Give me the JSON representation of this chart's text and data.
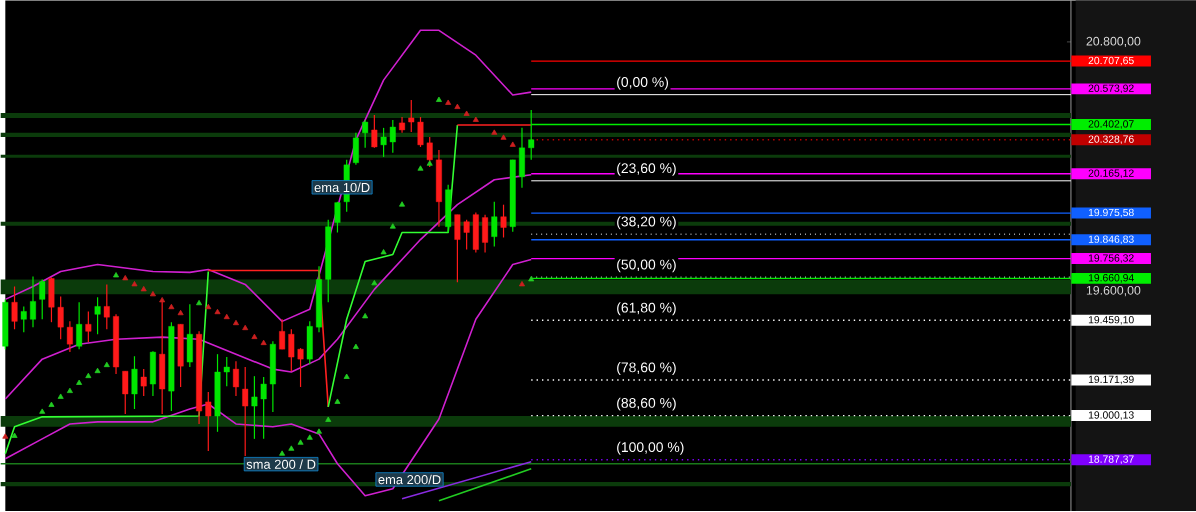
{
  "chart_data": {
    "type": "candlestick",
    "categories": [
      null,
      null,
      null,
      null,
      null,
      null,
      null,
      null,
      null,
      null,
      null,
      null,
      null,
      null,
      null,
      null,
      null,
      null,
      null,
      null,
      null,
      null,
      null,
      null,
      null,
      null,
      null,
      null,
      null,
      null,
      null,
      null,
      null,
      null,
      null,
      null,
      null,
      null,
      null,
      null,
      null,
      null,
      null,
      null,
      null,
      null,
      null,
      null,
      null,
      null,
      null,
      null,
      null,
      null,
      null,
      null,
      null,
      null,
      null,
      null,
      null,
      null,
      null,
      null,
      null,
      null,
      null,
      null,
      null,
      null,
      null,
      null,
      null,
      null,
      null,
      null,
      null,
      null,
      null,
      null,
      null,
      null,
      null,
      null,
      null,
      null,
      null,
      null,
      null,
      null,
      null,
      null,
      null,
      null,
      null,
      null,
      null,
      null,
      null,
      null,
      null,
      null,
      null,
      null,
      null,
      null,
      null,
      null,
      null,
      null,
      null,
      null,
      null,
      null,
      null,
      null
    ],
    "ohlc": [
      [
        19334,
        19560,
        19320,
        19546
      ],
      [
        19546,
        19622,
        19416,
        19454
      ],
      [
        19464,
        19526,
        19402,
        19502
      ],
      [
        19464,
        19670,
        19426,
        19550
      ],
      [
        19560,
        19656,
        19464,
        19646
      ],
      [
        19661,
        19666,
        19450,
        19522
      ],
      [
        19522,
        19574,
        19368,
        19426
      ],
      [
        19426,
        19454,
        19306,
        19344
      ],
      [
        19334,
        19546,
        19320,
        19440
      ],
      [
        19440,
        19502,
        19354,
        19406
      ],
      [
        19488,
        19570,
        19392,
        19526
      ],
      [
        19526,
        19632,
        19416,
        19474
      ],
      [
        19478,
        19488,
        19200,
        19234
      ],
      [
        19214,
        19214,
        19008,
        19104
      ],
      [
        19104,
        19286,
        19032,
        19224
      ],
      [
        19186,
        19224,
        19094,
        19142
      ],
      [
        19152,
        19310,
        19094,
        19306
      ],
      [
        19296,
        19560,
        19008,
        19128
      ],
      [
        19118,
        19450,
        19022,
        19430
      ],
      [
        19440,
        19440,
        19138,
        19238
      ],
      [
        19258,
        19536,
        19234,
        19392
      ],
      [
        19392,
        19406,
        18960,
        19022
      ],
      [
        19066,
        19114,
        18830,
        18998
      ],
      [
        18998,
        19296,
        18922,
        19210
      ],
      [
        19210,
        19282,
        19142,
        19234
      ],
      [
        19224,
        19262,
        19094,
        19138
      ],
      [
        19128,
        19234,
        18806,
        19046
      ],
      [
        19046,
        19190,
        18888,
        19090
      ],
      [
        19080,
        19186,
        18888,
        19152
      ],
      [
        19152,
        19358,
        19018,
        19344
      ],
      [
        19406,
        19464,
        19320,
        19320
      ],
      [
        19392,
        19416,
        19214,
        19282
      ],
      [
        19320,
        19325,
        19138,
        19272
      ],
      [
        19272,
        19454,
        19248,
        19430
      ],
      [
        19426,
        19720,
        19402,
        19656
      ],
      [
        19656,
        19944,
        19546,
        19910
      ],
      [
        19930,
        20030,
        19882,
        20026
      ],
      [
        20030,
        20232,
        19982,
        20208
      ],
      [
        20218,
        20362,
        20208,
        20338
      ],
      [
        20362,
        20424,
        20290,
        20414
      ],
      [
        20376,
        20448,
        20290,
        20294
      ],
      [
        20304,
        20386,
        20246,
        20342
      ],
      [
        20318,
        20424,
        20266,
        20390
      ],
      [
        20410,
        20438,
        20362,
        20376
      ],
      [
        20434,
        20520,
        20366,
        20414
      ],
      [
        20414,
        20438,
        20294,
        20304
      ],
      [
        20314,
        20342,
        20198,
        20232
      ],
      [
        20232,
        20280,
        19910,
        20030
      ],
      [
        19910,
        20112,
        19882,
        20088
      ],
      [
        19968,
        19968,
        19642,
        19848
      ],
      [
        19934,
        19944,
        19800,
        19882
      ],
      [
        19968,
        19978,
        19786,
        19800
      ],
      [
        19954,
        19968,
        19786,
        19834
      ],
      [
        19862,
        20030,
        19814,
        19958
      ],
      [
        19958,
        20016,
        19858,
        19906
      ],
      [
        19910,
        20232,
        19886,
        20232
      ],
      [
        20150,
        20386,
        20098,
        20290
      ],
      [
        20290,
        20472,
        20232,
        20329
      ],
      null,
      null,
      null,
      null,
      null,
      null,
      null,
      null,
      null,
      null,
      null,
      null,
      null,
      null,
      null,
      null,
      null,
      null,
      null,
      null,
      null,
      null,
      null,
      null,
      null,
      null,
      null,
      null,
      null,
      null,
      null,
      null,
      null,
      null,
      null,
      null,
      null,
      null,
      null,
      null,
      null,
      null,
      null,
      null,
      null,
      null,
      null,
      null,
      null,
      null,
      null,
      null,
      null,
      null,
      null,
      null,
      null,
      null
    ],
    "series": [
      {
        "type": "line",
        "color": "#d020d0",
        "values": [
          19560,
          null,
          null,
          19622,
          null,
          null,
          19694,
          null,
          null,
          null,
          19728,
          null,
          null,
          null,
          null,
          null,
          19694,
          null,
          null,
          null,
          19690,
          null,
          19704,
          null,
          null,
          null,
          19632,
          null,
          null,
          null,
          19454,
          null,
          null,
          19512,
          null,
          null,
          null,
          null,
          20328,
          null,
          null,
          20616,
          null,
          null,
          null,
          20856,
          null,
          20856,
          null,
          null,
          null,
          20736,
          null,
          null,
          null,
          20544,
          null,
          20558,
          null,
          null,
          null,
          null,
          null,
          null,
          null,
          null,
          null,
          null,
          null,
          null,
          null,
          null,
          null,
          null,
          null,
          null,
          null,
          null,
          null,
          null,
          null,
          null,
          null,
          null,
          null,
          null,
          null,
          null,
          null,
          null,
          null,
          null,
          null,
          null,
          null,
          null,
          null,
          null,
          null,
          null,
          null,
          null,
          null,
          null,
          null,
          null,
          null,
          null,
          null,
          null,
          null,
          null,
          null,
          null,
          null,
          null
        ]
      },
      {
        "type": "line",
        "color": "#d020d0",
        "values": [
          19080,
          null,
          null,
          null,
          19272,
          null,
          null,
          null,
          19344,
          null,
          null,
          null,
          19368,
          null,
          null,
          null,
          null,
          19378,
          null,
          null,
          null,
          19368,
          null,
          null,
          null,
          19296,
          null,
          null,
          null,
          19224,
          null,
          19210,
          null,
          null,
          19272,
          null,
          19368,
          null,
          null,
          null,
          19608,
          null,
          null,
          null,
          null,
          19848,
          null,
          null,
          null,
          20016,
          null,
          null,
          null,
          20136,
          null,
          null,
          null,
          20160,
          null,
          null,
          null,
          null,
          null,
          null,
          null,
          null,
          null,
          null,
          null,
          null,
          null,
          null,
          null,
          null,
          null,
          null,
          null,
          null,
          null,
          null,
          null,
          null,
          null,
          null,
          null,
          null,
          null,
          null,
          null,
          null,
          null,
          null,
          null,
          null,
          null,
          null,
          null,
          null,
          null,
          null,
          null,
          null,
          null,
          null,
          null,
          null,
          null,
          null,
          null,
          null,
          null,
          null,
          null,
          null,
          null,
          null
        ]
      },
      {
        "type": "line",
        "color": "#d020d0",
        "values": [
          18792,
          null,
          null,
          null,
          18888,
          null,
          null,
          18960,
          null,
          null,
          18970,
          null,
          null,
          null,
          null,
          null,
          18970,
          null,
          null,
          null,
          19032,
          null,
          19056,
          null,
          null,
          18960,
          null,
          null,
          null,
          18946,
          null,
          18960,
          null,
          null,
          18912,
          null,
          18768,
          null,
          null,
          18614,
          null,
          null,
          18648,
          null,
          null,
          null,
          null,
          18984,
          null,
          null,
          null,
          19464,
          null,
          null,
          null,
          19728,
          null,
          19752,
          null,
          null,
          null,
          null,
          null,
          null,
          null,
          null,
          null,
          null,
          null,
          null,
          null,
          null,
          null,
          null,
          null,
          null,
          null,
          null,
          null,
          null,
          null,
          null,
          null,
          null,
          null,
          null,
          null,
          null,
          null,
          null,
          null,
          null,
          null,
          null,
          null,
          null,
          null,
          null,
          null,
          null,
          null,
          null,
          null,
          null,
          null,
          null,
          null,
          null,
          null,
          null,
          null,
          null,
          null,
          null,
          null,
          null
        ]
      },
      {
        "type": "line",
        "color": "#33ff33",
        "values": [
          18816,
          18946,
          null,
          null,
          18994,
          null,
          null,
          null,
          null,
          null,
          null,
          null,
          null,
          null,
          null,
          null,
          null,
          null,
          null,
          null,
          null,
          18998,
          19694,
          null,
          null,
          null,
          null,
          null,
          null,
          null,
          null,
          null,
          null,
          null,
          null,
          null,
          null,
          null,
          null,
          null,
          null,
          null,
          null,
          null,
          null,
          null,
          null,
          null,
          null,
          null,
          null,
          null,
          null,
          null,
          null,
          null,
          null,
          null,
          null,
          null,
          null,
          null,
          null,
          null,
          null,
          null,
          null,
          null,
          null,
          null,
          null,
          null,
          null,
          null,
          null,
          null,
          null,
          null,
          null,
          null,
          null,
          null,
          null,
          null,
          null,
          null,
          null,
          null,
          null,
          null,
          null,
          null,
          null,
          null,
          null,
          null,
          null,
          null,
          null,
          null,
          null,
          null,
          null,
          null,
          null,
          null,
          null,
          null,
          null,
          null,
          null,
          null,
          null,
          null,
          null,
          null
        ]
      },
      {
        "type": "line",
        "color": "#ff2020",
        "values": [
          null,
          null,
          null,
          null,
          null,
          null,
          null,
          null,
          null,
          null,
          null,
          null,
          null,
          null,
          null,
          null,
          null,
          null,
          null,
          null,
          null,
          null,
          19699,
          null,
          null,
          null,
          null,
          null,
          null,
          null,
          null,
          null,
          null,
          null,
          19699,
          19042,
          null,
          null,
          null,
          null,
          null,
          null,
          null,
          null,
          null,
          null,
          null,
          null,
          null,
          null,
          null,
          null,
          null,
          null,
          null,
          null,
          null,
          null,
          null,
          null,
          null,
          null,
          null,
          null,
          null,
          null,
          null,
          null,
          null,
          null,
          null,
          null,
          null,
          null,
          null,
          null,
          null,
          null,
          null,
          null,
          null,
          null,
          null,
          null,
          null,
          null,
          null,
          null,
          null,
          null,
          null,
          null,
          null,
          null,
          null,
          null,
          null,
          null,
          null,
          null,
          null,
          null,
          null,
          null,
          null,
          null,
          null,
          null,
          null,
          null,
          null,
          null,
          null,
          null,
          null,
          null
        ]
      },
      {
        "type": "line",
        "color": "#33ff33",
        "values": [
          null,
          null,
          null,
          null,
          null,
          null,
          null,
          null,
          null,
          null,
          null,
          null,
          null,
          null,
          null,
          null,
          null,
          null,
          null,
          null,
          null,
          null,
          null,
          null,
          null,
          null,
          null,
          null,
          null,
          null,
          null,
          null,
          null,
          null,
          null,
          19042,
          null,
          19464,
          null,
          19742,
          null,
          null,
          19776,
          19882,
          null,
          null,
          null,
          null,
          19882,
          20400,
          null,
          null,
          null,
          null,
          null,
          null,
          null,
          null,
          null,
          null,
          null,
          null,
          null,
          null,
          null,
          null,
          null,
          null,
          null,
          null,
          null,
          null,
          null,
          null,
          null,
          null,
          null,
          null,
          null,
          null,
          null,
          null,
          null,
          null,
          null,
          null,
          null,
          null,
          null,
          null,
          null,
          null,
          null,
          null,
          null,
          null,
          null,
          null,
          null,
          null,
          null,
          null,
          null,
          null,
          null,
          null,
          null,
          null,
          null,
          null,
          null,
          null,
          null,
          null,
          null,
          null
        ]
      },
      {
        "type": "line",
        "color": "#ff2020",
        "values": [
          null,
          null,
          null,
          null,
          null,
          null,
          null,
          null,
          null,
          null,
          null,
          null,
          null,
          null,
          null,
          null,
          null,
          null,
          null,
          null,
          null,
          null,
          null,
          null,
          null,
          null,
          null,
          null,
          null,
          null,
          null,
          null,
          null,
          null,
          null,
          null,
          null,
          null,
          null,
          null,
          null,
          null,
          null,
          null,
          null,
          null,
          null,
          null,
          null,
          20400,
          null,
          null,
          null,
          null,
          null,
          null,
          null,
          20400,
          null,
          null,
          null,
          null,
          null,
          null,
          null,
          null,
          null,
          null,
          null,
          null,
          null,
          null,
          null,
          null,
          null,
          null,
          null,
          null,
          null,
          null,
          null,
          null,
          null,
          null,
          null,
          null,
          null,
          null,
          null,
          null,
          null,
          null,
          null,
          null,
          null,
          null,
          null,
          null,
          null,
          null,
          null,
          null,
          null,
          null,
          null,
          null,
          null,
          null,
          null,
          null,
          null,
          null,
          null,
          null,
          null,
          null
        ]
      },
      {
        "type": "line",
        "color": "#8a2be2",
        "values": [
          null,
          null,
          null,
          null,
          null,
          null,
          null,
          null,
          null,
          null,
          null,
          null,
          null,
          null,
          null,
          null,
          null,
          null,
          null,
          null,
          null,
          null,
          null,
          null,
          null,
          null,
          null,
          null,
          null,
          null,
          null,
          null,
          null,
          null,
          null,
          null,
          null,
          null,
          null,
          null,
          null,
          null,
          null,
          18600,
          null,
          null,
          null,
          null,
          null,
          null,
          null,
          null,
          null,
          null,
          null,
          null,
          null,
          18778,
          null,
          null,
          null,
          null,
          null,
          null,
          null,
          null,
          null,
          null,
          null,
          null,
          null,
          null,
          null,
          null,
          null,
          null,
          null,
          null,
          null,
          null,
          null,
          null,
          null,
          null,
          null,
          null,
          null,
          null,
          null,
          null,
          null,
          null,
          null,
          null,
          null,
          null,
          null,
          null,
          null,
          null,
          null,
          null,
          null,
          null,
          null,
          null,
          null,
          null,
          null,
          null,
          null,
          null,
          null,
          null,
          null,
          null
        ]
      },
      {
        "type": "line",
        "color": "#22cc22",
        "values": [
          null,
          null,
          null,
          null,
          null,
          null,
          null,
          null,
          null,
          null,
          null,
          null,
          null,
          null,
          null,
          null,
          null,
          null,
          null,
          null,
          null,
          null,
          null,
          null,
          null,
          null,
          null,
          null,
          null,
          null,
          null,
          null,
          null,
          null,
          null,
          null,
          null,
          null,
          null,
          null,
          null,
          null,
          null,
          null,
          null,
          null,
          null,
          18590,
          null,
          null,
          null,
          null,
          null,
          null,
          null,
          null,
          null,
          18744,
          null,
          null,
          null,
          null,
          null,
          null,
          null,
          null,
          null,
          null,
          null,
          null,
          null,
          null,
          null,
          null,
          null,
          null,
          null,
          null,
          null,
          null,
          null,
          null,
          null,
          null,
          null,
          null,
          null,
          null,
          null,
          null,
          null,
          null,
          null,
          null,
          null,
          null,
          null,
          null,
          null,
          null,
          null,
          null,
          null,
          null,
          null,
          null,
          null,
          null,
          null,
          null,
          null,
          null,
          null,
          null,
          null,
          null
        ]
      },
      {
        "type": "scatter",
        "color": "#22cc22",
        "marker": "triangle",
        "values": [
          null,
          18902,
          null,
          null,
          19018,
          19051,
          19090,
          19118,
          19157,
          19190,
          19214,
          19243,
          19675,
          null,
          null,
          null,
          null,
          null,
          null,
          null,
          null,
          19541,
          null,
          null,
          null,
          null,
          null,
          null,
          null,
          null,
          18816,
          18840,
          18869,
          18893,
          18922,
          18979,
          19066,
          19186,
          19330,
          19478,
          19637,
          19786,
          19910,
          20016,
          null,
          20189,
          20213,
          20520,
          null,
          null,
          null,
          null,
          null,
          null,
          null,
          null,
          null,
          19656,
          null,
          null,
          null,
          null,
          null,
          null,
          null,
          null,
          null,
          null,
          null,
          null,
          null,
          null,
          null,
          null,
          null,
          null,
          null,
          null,
          null,
          null,
          null,
          null,
          null,
          null,
          null,
          null,
          null,
          null,
          null,
          null,
          null,
          null,
          null,
          null,
          null,
          null,
          null,
          null,
          null,
          null,
          null,
          null,
          null,
          null,
          null,
          null,
          null,
          null,
          null,
          null,
          null,
          null,
          null,
          null,
          null,
          null
        ]
      },
      {
        "type": "scatter",
        "color": "#cc2020",
        "marker": "triangle",
        "values": [
          18898,
          null,
          null,
          null,
          null,
          null,
          null,
          null,
          null,
          null,
          null,
          null,
          null,
          19661,
          19632,
          19608,
          19584,
          19555,
          19522,
          19493,
          null,
          null,
          19522,
          19498,
          19474,
          19445,
          19421,
          19378,
          19349,
          null,
          null,
          null,
          null,
          null,
          null,
          null,
          null,
          null,
          null,
          null,
          null,
          null,
          null,
          null,
          null,
          null,
          null,
          null,
          20506,
          20486,
          20453,
          20424,
          null,
          20362,
          20338,
          20304,
          19632,
          null,
          null,
          null,
          null,
          null,
          null,
          null,
          null,
          null,
          null,
          null,
          null,
          null,
          null,
          null,
          null,
          null,
          null,
          null,
          null,
          null,
          null,
          null,
          null,
          null,
          null,
          null,
          null,
          null,
          null,
          null,
          null,
          null,
          null,
          null,
          null,
          null,
          null,
          null,
          null,
          null,
          null,
          null,
          null,
          null,
          null,
          null,
          null,
          null,
          null,
          null,
          null,
          null,
          null,
          null,
          null,
          null,
          null,
          null
        ]
      }
    ],
    "bands": [
      {
        "axis": "y",
        "from": 19584,
        "to": 19656,
        "color": "#0b3b0b"
      },
      {
        "axis": "y",
        "from": 18946,
        "to": 18998,
        "color": "#0b3b0b"
      },
      {
        "axis": "y",
        "from": 18660,
        "to": 18680,
        "color": "#0b3b0b"
      },
      {
        "axis": "y",
        "from": 20434,
        "to": 20458,
        "color": "#0b3b0b"
      },
      {
        "axis": "y",
        "from": 20342,
        "to": 20362,
        "color": "#0b3b0b"
      },
      {
        "axis": "y",
        "from": 20242,
        "to": 20256,
        "color": "#0b3b0b"
      },
      {
        "axis": "y",
        "from": 19915,
        "to": 19934,
        "color": "#0b3b0b"
      }
    ],
    "ref_lines": [
      {
        "axis": "y",
        "value": 20546,
        "line_style": "solid"
      },
      {
        "axis": "y",
        "value": 20131,
        "line_style": "solid"
      },
      {
        "axis": "y",
        "value": 19874,
        "line_style": "dotted"
      },
      {
        "axis": "y",
        "value": 19667,
        "line_style": "dotted"
      },
      {
        "axis": "y",
        "value": 20707.65,
        "label": "20.707,65",
        "color": "#ff0000",
        "line_style": "solid"
      },
      {
        "axis": "y",
        "value": 20573.92,
        "label": "20.573,92",
        "color": "#ff00ff",
        "line_style": "solid"
      },
      {
        "axis": "y",
        "value": 20402.07,
        "label": "20.402,07",
        "color": "#00ee00",
        "line_style": "solid"
      },
      {
        "axis": "y",
        "value": 20328.76,
        "label": "20.328,76",
        "color": "#c00000",
        "line_style": "dotted"
      },
      {
        "axis": "y",
        "value": 20165.12,
        "label": "20.165,12",
        "color": "#ff00ff",
        "line_style": "solid"
      },
      {
        "axis": "y",
        "value": 19975.58,
        "label": "19.975,58",
        "color": "#1060ff",
        "line_style": "solid"
      },
      {
        "axis": "y",
        "value": 19846.83,
        "label": "19.846,83",
        "color": "#1060ff",
        "line_style": "solid"
      },
      {
        "axis": "y",
        "value": 19756.32,
        "label": "19.756,32",
        "color": "#ff00ff",
        "line_style": "solid"
      },
      {
        "axis": "y",
        "value": 19660.94,
        "label": "19.660,94",
        "color": "#00ee00",
        "line_style": "solid"
      },
      {
        "axis": "y",
        "value": 19459.1,
        "label": "19.459,10",
        "color": "#ffffff",
        "line_style": "dotted"
      },
      {
        "axis": "y",
        "value": 19171.39,
        "label": "19.171,39",
        "color": "#ffffff",
        "line_style": "dotted"
      },
      {
        "axis": "y",
        "value": 19000.13,
        "label": "19.000,13",
        "color": "#ffffff",
        "line_style": "dotted"
      },
      {
        "axis": "y",
        "value": 18787.37,
        "label": "18.787,37",
        "color": "#7f00ff",
        "line_style": "dotted"
      },
      {
        "axis": "y",
        "value": 18768,
        "color": "#1a7a1a",
        "line_style": "solid"
      }
    ],
    "annotations": [
      "ema 10/D",
      "sma 200 / D",
      "ema 200/D",
      {
        "text": "(0,00 %)",
        "y": 20546
      },
      {
        "text": "(23,60 %)",
        "y": 20131
      },
      {
        "text": "(38,20 %)",
        "y": 19874
      },
      {
        "text": "(50,00 %)",
        "y": 19667
      },
      {
        "text": "(61,80 %)",
        "y": 19459.1
      },
      {
        "text": "(78,60 %)",
        "y": 19171.39
      },
      {
        "text": "(88,60 %)",
        "y": 19000.13
      },
      {
        "text": "(100,00 %)",
        "y": 18787.37
      }
    ],
    "ylim": [
      18540,
      21000
    ],
    "yticks": [
      {
        "value": 20800,
        "label": "20.800,00"
      },
      {
        "value": 19600,
        "label": "19.600,00"
      }
    ],
    "tick_labels": "y"
  }
}
